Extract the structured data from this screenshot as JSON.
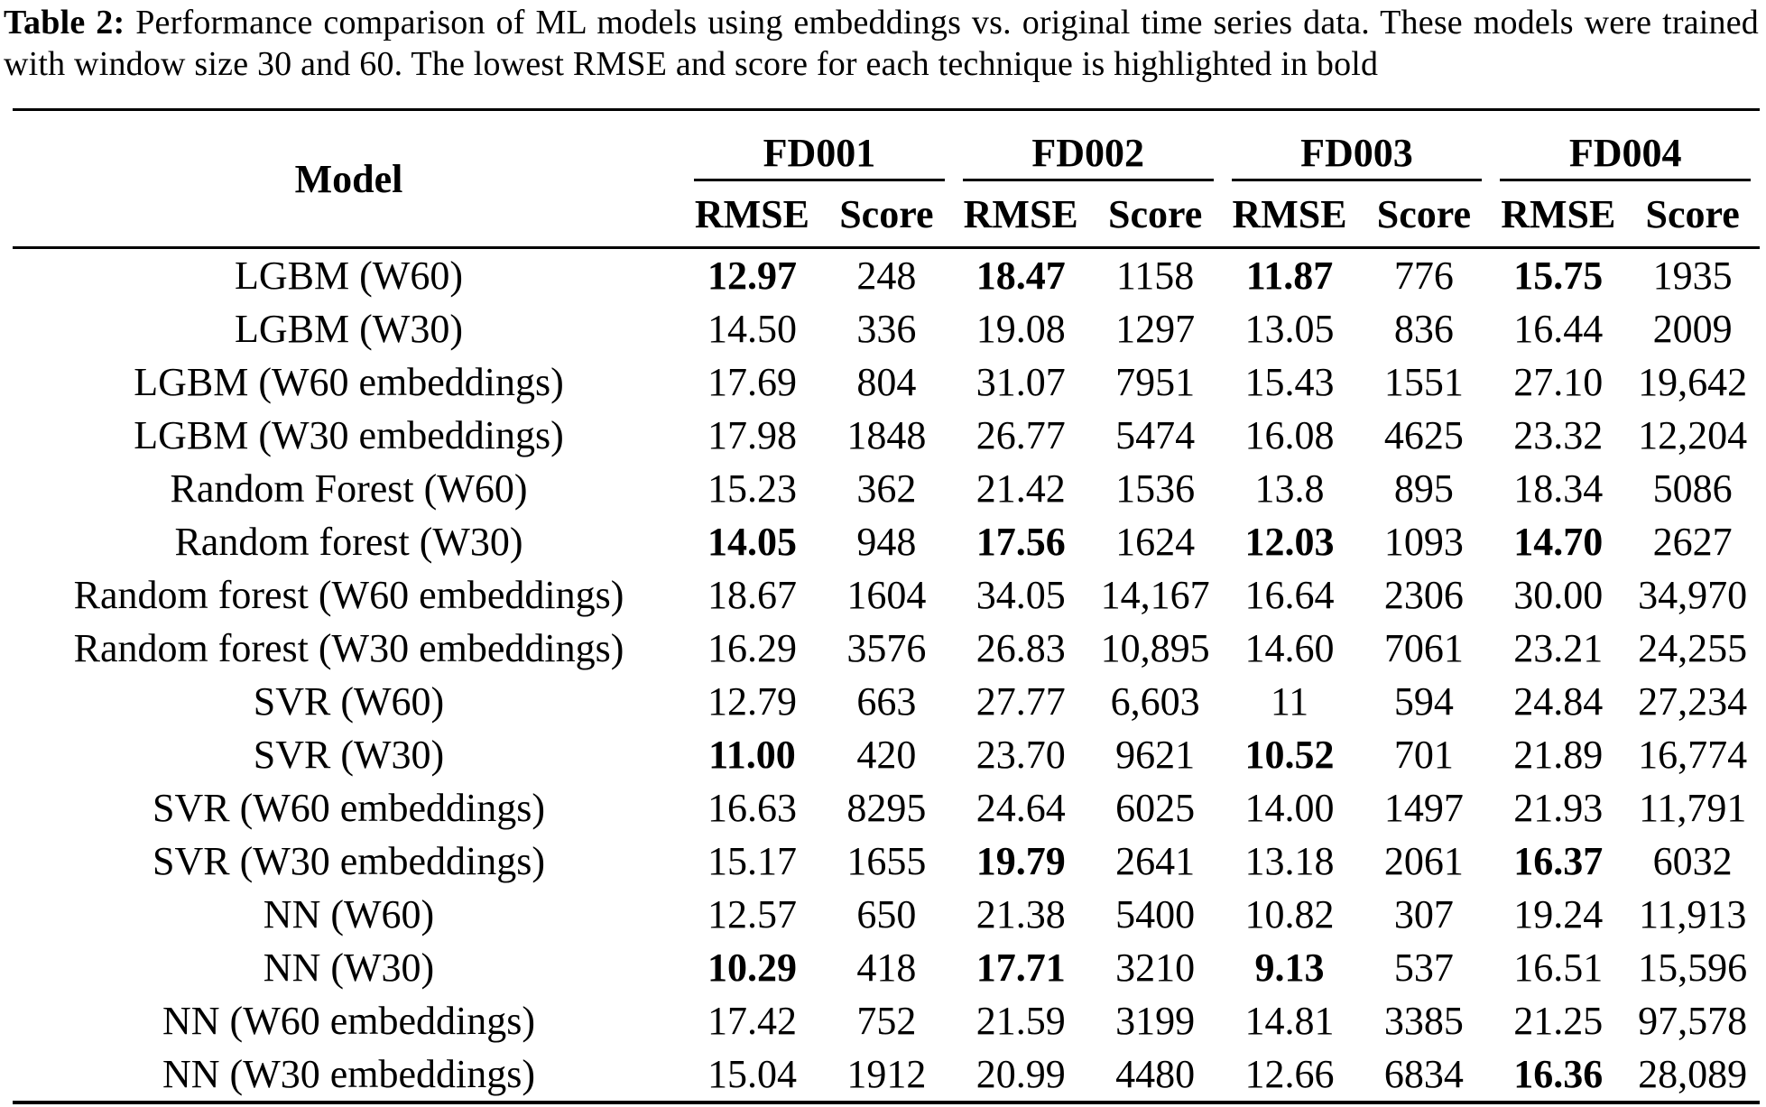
{
  "caption": {
    "label": "Table 2:",
    "text": "Performance comparison of ML models using embeddings vs. original time series data. These models were trained with window size 30 and 60. The lowest RMSE and score for each technique is highlighted in bold"
  },
  "table": {
    "model_header": "Model",
    "groups": [
      {
        "label": "FD001"
      },
      {
        "label": "FD002"
      },
      {
        "label": "FD003"
      },
      {
        "label": "FD004"
      }
    ],
    "sub_rmse": "RMSE",
    "sub_score": "Score",
    "rows": [
      {
        "model": "LGBM (W60)",
        "values": [
          "12.97",
          "248",
          "18.47",
          "1158",
          "11.87",
          "776",
          "15.75",
          "1935"
        ],
        "bold": [
          0,
          2,
          4,
          6
        ]
      },
      {
        "model": "LGBM (W30)",
        "values": [
          "14.50",
          "336",
          "19.08",
          "1297",
          "13.05",
          "836",
          "16.44",
          "2009"
        ],
        "bold": []
      },
      {
        "model": "LGBM (W60 embeddings)",
        "values": [
          "17.69",
          "804",
          "31.07",
          "7951",
          "15.43",
          "1551",
          "27.10",
          "19,642"
        ],
        "bold": []
      },
      {
        "model": "LGBM (W30 embeddings)",
        "values": [
          "17.98",
          "1848",
          "26.77",
          "5474",
          "16.08",
          "4625",
          "23.32",
          "12,204"
        ],
        "bold": []
      },
      {
        "model": "Random Forest (W60)",
        "values": [
          "15.23",
          "362",
          "21.42",
          "1536",
          "13.8",
          "895",
          "18.34",
          "5086"
        ],
        "bold": []
      },
      {
        "model": "Random forest (W30)",
        "values": [
          "14.05",
          "948",
          "17.56",
          "1624",
          "12.03",
          "1093",
          "14.70",
          "2627"
        ],
        "bold": [
          0,
          2,
          4,
          6
        ]
      },
      {
        "model": "Random forest (W60 embeddings)",
        "values": [
          "18.67",
          "1604",
          "34.05",
          "14,167",
          "16.64",
          "2306",
          "30.00",
          "34,970"
        ],
        "bold": []
      },
      {
        "model": "Random forest (W30 embeddings)",
        "values": [
          "16.29",
          "3576",
          "26.83",
          "10,895",
          "14.60",
          "7061",
          "23.21",
          "24,255"
        ],
        "bold": []
      },
      {
        "model": "SVR (W60)",
        "values": [
          "12.79",
          "663",
          "27.77",
          "6,603",
          "11",
          "594",
          "24.84",
          "27,234"
        ],
        "bold": []
      },
      {
        "model": "SVR (W30)",
        "values": [
          "11.00",
          "420",
          "23.70",
          "9621",
          "10.52",
          "701",
          "21.89",
          "16,774"
        ],
        "bold": [
          0,
          4
        ]
      },
      {
        "model": "SVR (W60 embeddings)",
        "values": [
          "16.63",
          "8295",
          "24.64",
          "6025",
          "14.00",
          "1497",
          "21.93",
          "11,791"
        ],
        "bold": []
      },
      {
        "model": "SVR (W30 embeddings)",
        "values": [
          "15.17",
          "1655",
          "19.79",
          "2641",
          "13.18",
          "2061",
          "16.37",
          "6032"
        ],
        "bold": [
          2,
          6
        ]
      },
      {
        "model": "NN (W60)",
        "values": [
          "12.57",
          "650",
          "21.38",
          "5400",
          "10.82",
          "307",
          "19.24",
          "11,913"
        ],
        "bold": []
      },
      {
        "model": "NN (W30)",
        "values": [
          "10.29",
          "418",
          "17.71",
          "3210",
          "9.13",
          "537",
          "16.51",
          "15,596"
        ],
        "bold": [
          0,
          2,
          4
        ]
      },
      {
        "model": "NN (W60 embeddings)",
        "values": [
          "17.42",
          "752",
          "21.59",
          "3199",
          "14.81",
          "3385",
          "21.25",
          "97,578"
        ],
        "bold": []
      },
      {
        "model": "NN (W30 embeddings)",
        "values": [
          "15.04",
          "1912",
          "20.99",
          "4480",
          "12.66",
          "6834",
          "16.36",
          "28,089"
        ],
        "bold": [
          6
        ]
      }
    ]
  }
}
